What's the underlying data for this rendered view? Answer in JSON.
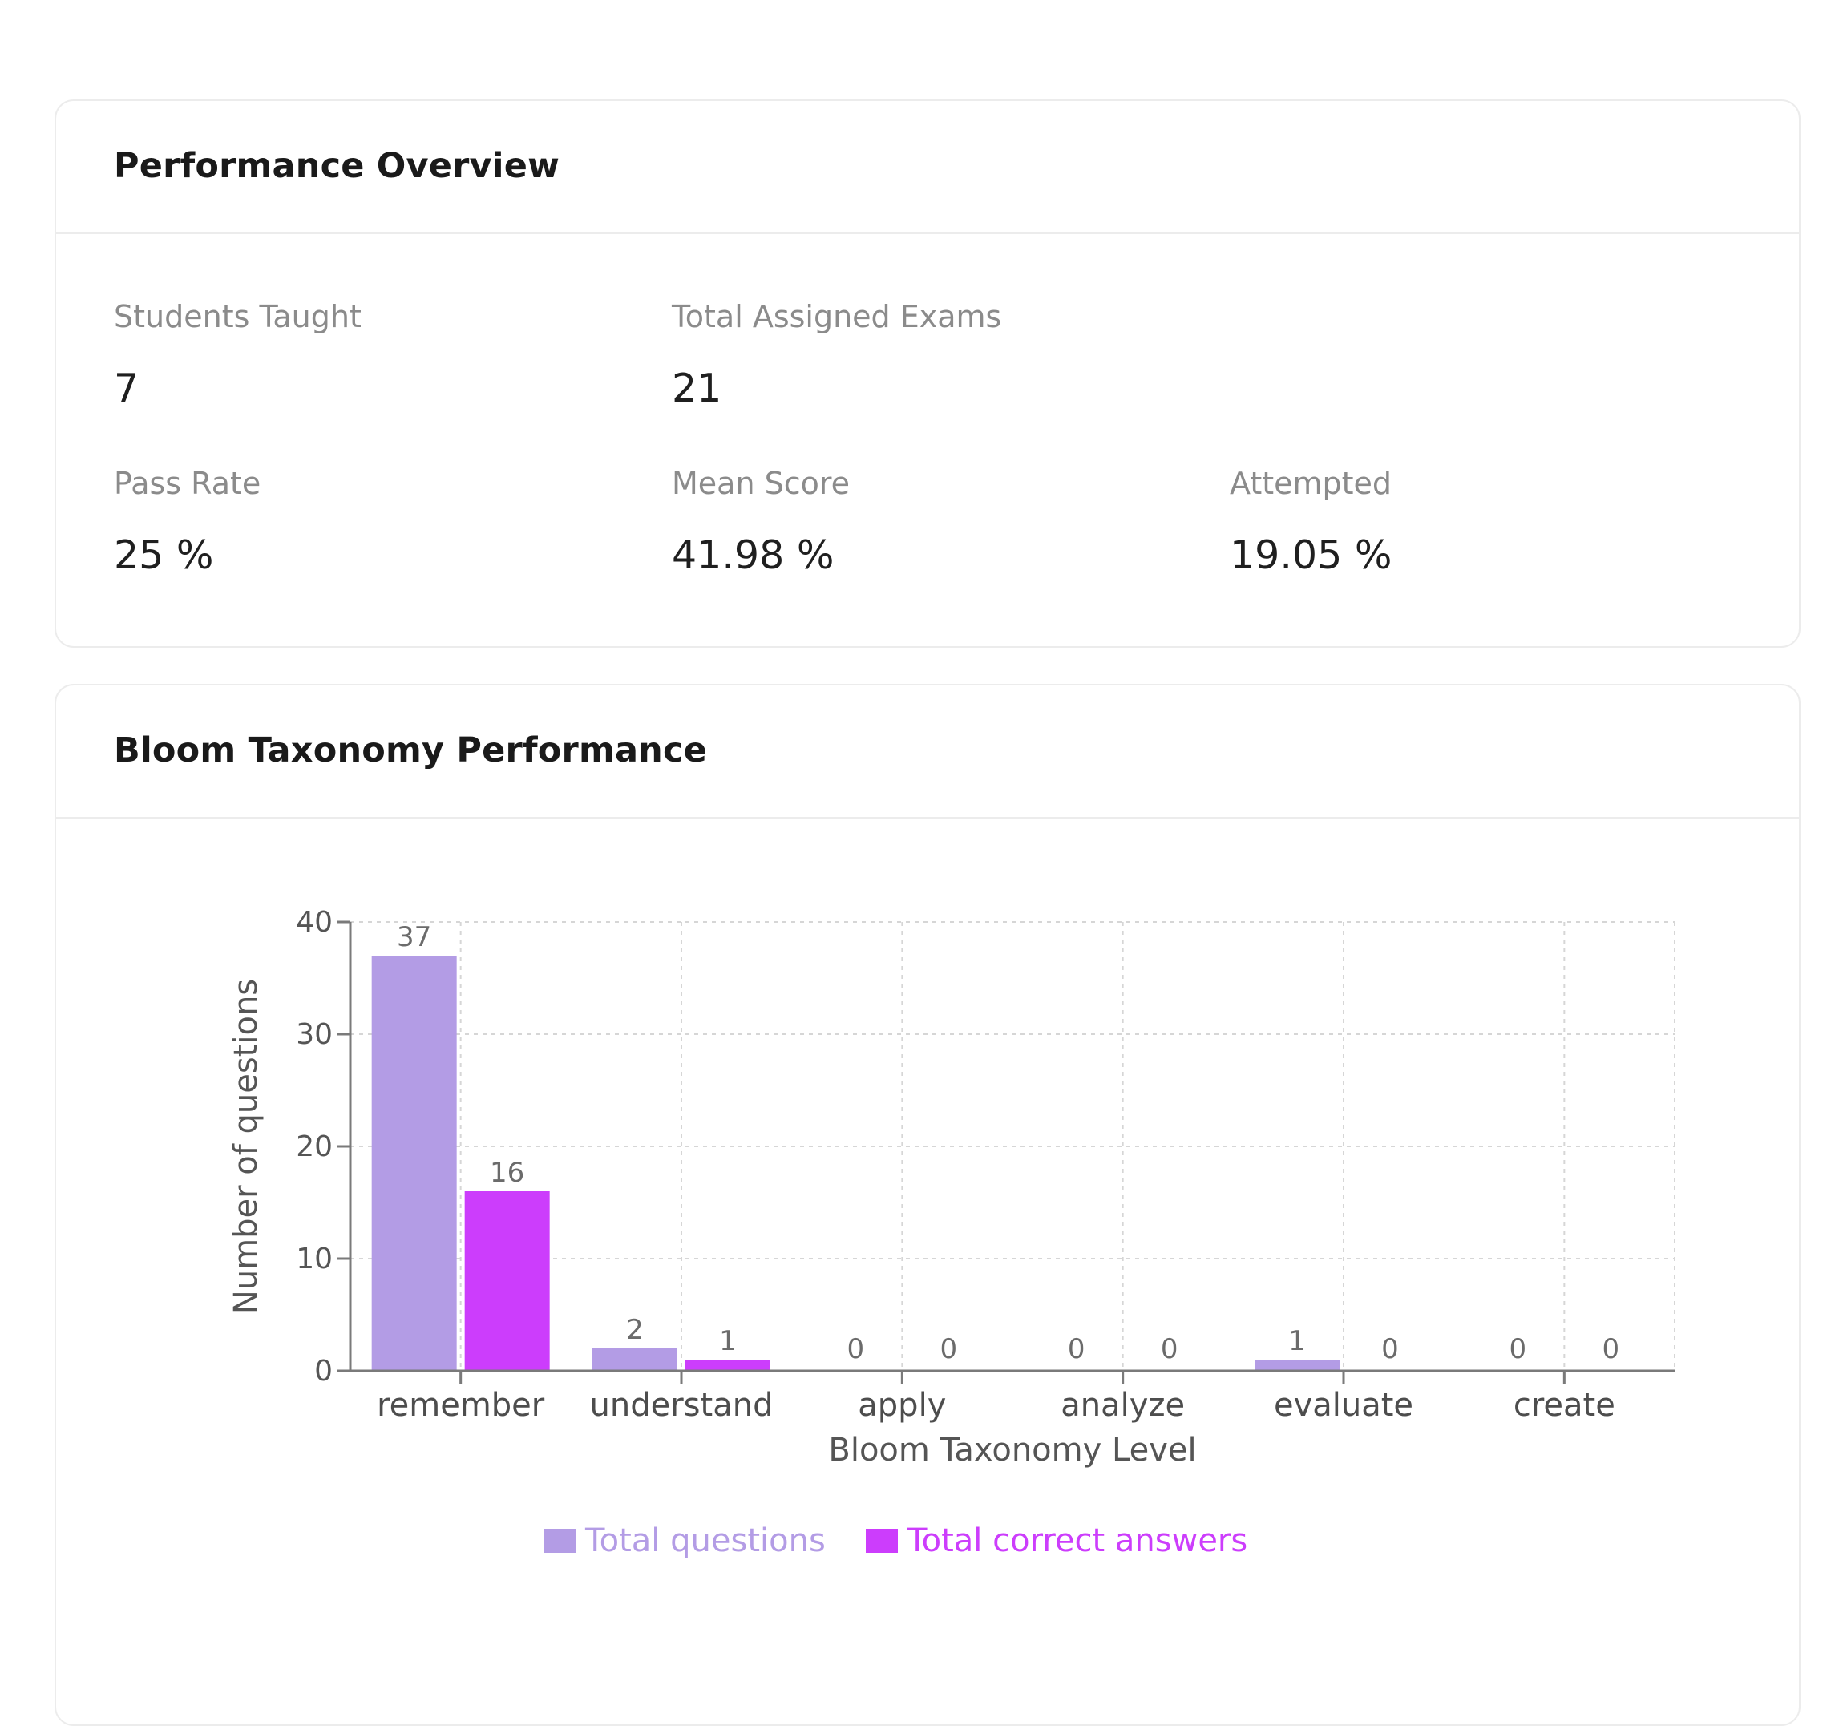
{
  "overview": {
    "title": "Performance Overview",
    "metrics": [
      {
        "label": "Students Taught",
        "value": "7"
      },
      {
        "label": "Total Assigned Exams",
        "value": "21"
      },
      {
        "label": "Pass Rate",
        "value": "25 %"
      },
      {
        "label": "Mean Score",
        "value": "41.98 %"
      },
      {
        "label": "Attempted",
        "value": "19.05 %"
      }
    ]
  },
  "bloom": {
    "title": "Bloom Taxonomy Performance"
  },
  "chart_data": {
    "type": "bar",
    "title": "",
    "xlabel": "Bloom Taxonomy Level",
    "ylabel": "Number of questions",
    "ylim": [
      0,
      40
    ],
    "yticks": [
      0,
      10,
      20,
      30,
      40
    ],
    "grid": true,
    "legend_position": "bottom-center",
    "categories": [
      "remember",
      "understand",
      "apply",
      "analyze",
      "evaluate",
      "create"
    ],
    "series": [
      {
        "name": "Total questions",
        "color": "#b39ce5",
        "values": [
          37,
          2,
          0,
          0,
          1,
          0
        ]
      },
      {
        "name": "Total correct answers",
        "color": "#cc3dfc",
        "values": [
          16,
          1,
          0,
          0,
          0,
          0
        ]
      }
    ]
  }
}
